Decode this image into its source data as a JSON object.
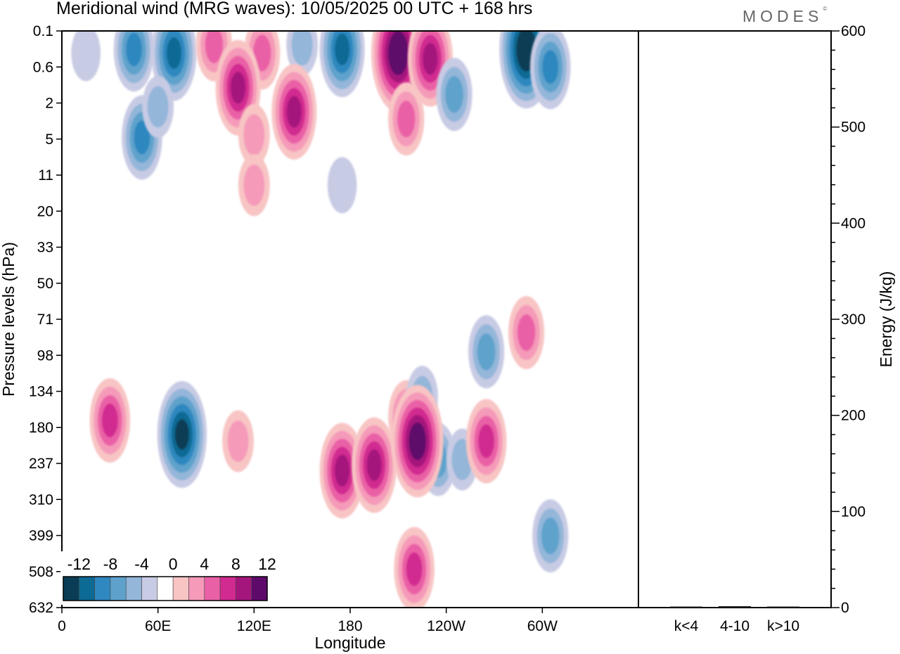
{
  "chart_data": [
    {
      "type": "heatmap",
      "title": "Meridional wind (MRG waves):  10/05/2025  00 UTC  + 168 hrs",
      "xlabel": "Longitude",
      "ylabel": "Pressure levels (hPa)",
      "x_ticks": [
        "0",
        "60E",
        "120E",
        "180",
        "120W",
        "60W"
      ],
      "y_ticks": [
        "0.1",
        "0.6",
        "2",
        "5",
        "11",
        "20",
        "33",
        "50",
        "71",
        "98",
        "134",
        "180",
        "237",
        "310",
        "399",
        "508",
        "632"
      ],
      "colorbar": {
        "labels": [
          "-12",
          "-8",
          "-4",
          "0",
          "4",
          "8",
          "12"
        ],
        "levels": [
          -14,
          -12,
          -10,
          -8,
          -6,
          -4,
          -2,
          2,
          4,
          6,
          8,
          10,
          12,
          14
        ],
        "colors": [
          "#0a3d55",
          "#0d6a94",
          "#2f88c0",
          "#5ea2cc",
          "#93b6d9",
          "#c8cbe4",
          "#ffffff",
          "#f8c4c4",
          "#f59ab9",
          "#ea60a6",
          "#d12a90",
          "#a5167d",
          "#5e0a6b"
        ]
      },
      "cells": [
        {
          "lon": 15,
          "p": 0.3,
          "v": -3
        },
        {
          "lon": 45,
          "p": 0.25,
          "v": -8
        },
        {
          "lon": 70,
          "p": 0.3,
          "v": -10
        },
        {
          "lon": 95,
          "p": 0.2,
          "v": 6
        },
        {
          "lon": 125,
          "p": 0.3,
          "v": 6
        },
        {
          "lon": 150,
          "p": 0.2,
          "v": -4
        },
        {
          "lon": 175,
          "p": 0.25,
          "v": -10
        },
        {
          "lon": 210,
          "p": 0.3,
          "v": 14
        },
        {
          "lon": 230,
          "p": 0.4,
          "v": 10
        },
        {
          "lon": 290,
          "p": 0.25,
          "v": -14
        },
        {
          "lon": 305,
          "p": 0.6,
          "v": -8
        },
        {
          "lon": 110,
          "p": 1.2,
          "v": 10
        },
        {
          "lon": 145,
          "p": 2.5,
          "v": 10
        },
        {
          "lon": 120,
          "p": 4.5,
          "v": 4
        },
        {
          "lon": 50,
          "p": 4.8,
          "v": -8
        },
        {
          "lon": 60,
          "p": 2.2,
          "v": -4
        },
        {
          "lon": 245,
          "p": 1.5,
          "v": -6
        },
        {
          "lon": 215,
          "p": 3,
          "v": 6
        },
        {
          "lon": 120,
          "p": 13,
          "v": 4
        },
        {
          "lon": 175,
          "p": 13,
          "v": -3
        },
        {
          "lon": 290,
          "p": 80,
          "v": 6
        },
        {
          "lon": 265,
          "p": 95,
          "v": -6
        },
        {
          "lon": 30,
          "p": 170,
          "v": 8
        },
        {
          "lon": 75,
          "p": 190,
          "v": -12
        },
        {
          "lon": 110,
          "p": 200,
          "v": 4
        },
        {
          "lon": 175,
          "p": 250,
          "v": 10
        },
        {
          "lon": 195,
          "p": 240,
          "v": 10
        },
        {
          "lon": 215,
          "p": 165,
          "v": 6
        },
        {
          "lon": 235,
          "p": 230,
          "v": -6
        },
        {
          "lon": 225,
          "p": 140,
          "v": -4
        },
        {
          "lon": 222,
          "p": 200,
          "v": 13
        },
        {
          "lon": 250,
          "p": 230,
          "v": -4
        },
        {
          "lon": 265,
          "p": 200,
          "v": 8
        },
        {
          "lon": 220,
          "p": 500,
          "v": 8
        },
        {
          "lon": 305,
          "p": 400,
          "v": -6
        }
      ]
    },
    {
      "type": "bar",
      "categories": [
        "k<4",
        "4-10",
        "k>10"
      ],
      "values": [
        0.3,
        1.5,
        0.3
      ],
      "ylabel": "Energy (J/kg)",
      "ylim": [
        0,
        600
      ],
      "y_ticks": [
        "0",
        "100",
        "200",
        "300",
        "400",
        "500",
        "600"
      ]
    }
  ],
  "brand": {
    "logo_text": "MODES",
    "logo_mark": "©"
  }
}
